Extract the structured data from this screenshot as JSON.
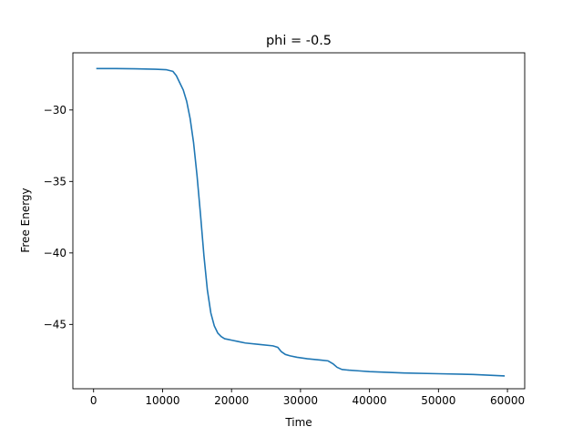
{
  "chart_data": {
    "type": "line",
    "title": "phi = -0.5",
    "xlabel": "Time",
    "ylabel": "Free Energy",
    "xlim": [
      -3000,
      62500
    ],
    "ylim": [
      -49.5,
      -26.0
    ],
    "xticks": [
      0,
      10000,
      20000,
      30000,
      40000,
      50000,
      60000
    ],
    "xtick_labels": [
      "0",
      "10000",
      "20000",
      "30000",
      "40000",
      "50000",
      "60000"
    ],
    "yticks": [
      -30,
      -35,
      -40,
      -45
    ],
    "ytick_labels": [
      "−30",
      "−35",
      "−40",
      "−45"
    ],
    "grid": false,
    "series": [
      {
        "color": "#1f77b4",
        "x": [
          500,
          3000,
          6000,
          9000,
          10500,
          11500,
          12000,
          12500,
          13000,
          13500,
          14000,
          14500,
          15000,
          15500,
          16000,
          16500,
          17000,
          17500,
          18000,
          18500,
          19000,
          19500,
          20000,
          21000,
          22000,
          24000,
          26000,
          26700,
          27200,
          27800,
          28500,
          29500,
          31000,
          33000,
          34000,
          34700,
          35300,
          36000,
          37000,
          38500,
          40000,
          45000,
          50000,
          55000,
          59500
        ],
        "y": [
          -27.1,
          -27.1,
          -27.12,
          -27.15,
          -27.18,
          -27.3,
          -27.6,
          -28.1,
          -28.6,
          -29.4,
          -30.6,
          -32.3,
          -34.6,
          -37.3,
          -40.2,
          -42.6,
          -44.2,
          -45.1,
          -45.6,
          -45.85,
          -46.0,
          -46.05,
          -46.1,
          -46.2,
          -46.3,
          -46.4,
          -46.5,
          -46.6,
          -46.9,
          -47.1,
          -47.2,
          -47.3,
          -47.4,
          -47.5,
          -47.55,
          -47.75,
          -48.0,
          -48.15,
          -48.2,
          -48.25,
          -48.3,
          -48.4,
          -48.45,
          -48.5,
          -48.6
        ]
      }
    ]
  }
}
